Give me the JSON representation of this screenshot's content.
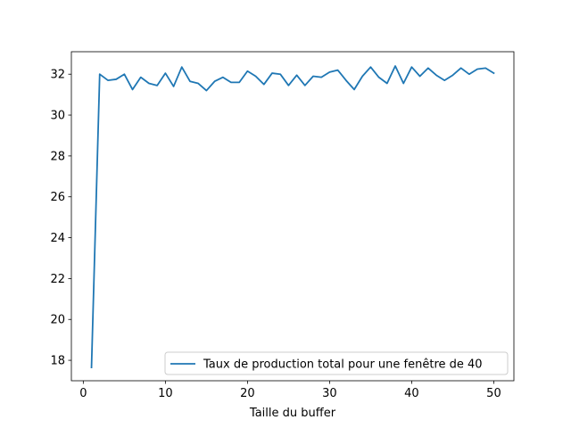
{
  "chart_data": {
    "type": "line",
    "title": "",
    "xlabel": "Taille du buffer",
    "ylabel": "",
    "xlim": [
      -1.45,
      52.45
    ],
    "ylim": [
      17.0,
      33.1
    ],
    "xticks": [
      0,
      10,
      20,
      30,
      40,
      50
    ],
    "yticks": [
      18,
      20,
      22,
      24,
      26,
      28,
      30,
      32
    ],
    "grid": false,
    "legend_position": "lower right",
    "series": [
      {
        "name": "Taux de production total pour une fenêtre de 40",
        "color": "#1f77b4",
        "x": [
          1,
          2,
          3,
          4,
          5,
          6,
          7,
          8,
          9,
          10,
          11,
          12,
          13,
          14,
          15,
          16,
          17,
          18,
          19,
          20,
          21,
          22,
          23,
          24,
          25,
          26,
          27,
          28,
          29,
          30,
          31,
          32,
          33,
          34,
          35,
          36,
          37,
          38,
          39,
          40,
          41,
          42,
          43,
          44,
          45,
          46,
          47,
          48,
          49,
          50
        ],
        "y": [
          17.65,
          32.0,
          31.7,
          31.75,
          32.0,
          31.25,
          31.85,
          31.55,
          31.45,
          32.05,
          31.4,
          32.35,
          31.65,
          31.55,
          31.2,
          31.65,
          31.85,
          31.6,
          31.6,
          32.15,
          31.9,
          31.5,
          32.05,
          32.0,
          31.45,
          31.95,
          31.45,
          31.9,
          31.85,
          32.1,
          32.2,
          31.7,
          31.25,
          31.9,
          32.35,
          31.85,
          31.55,
          32.4,
          31.55,
          32.35,
          31.9,
          32.3,
          31.95,
          31.7,
          31.95,
          32.3,
          32.0,
          32.25,
          32.3,
          32.05
        ]
      }
    ]
  }
}
